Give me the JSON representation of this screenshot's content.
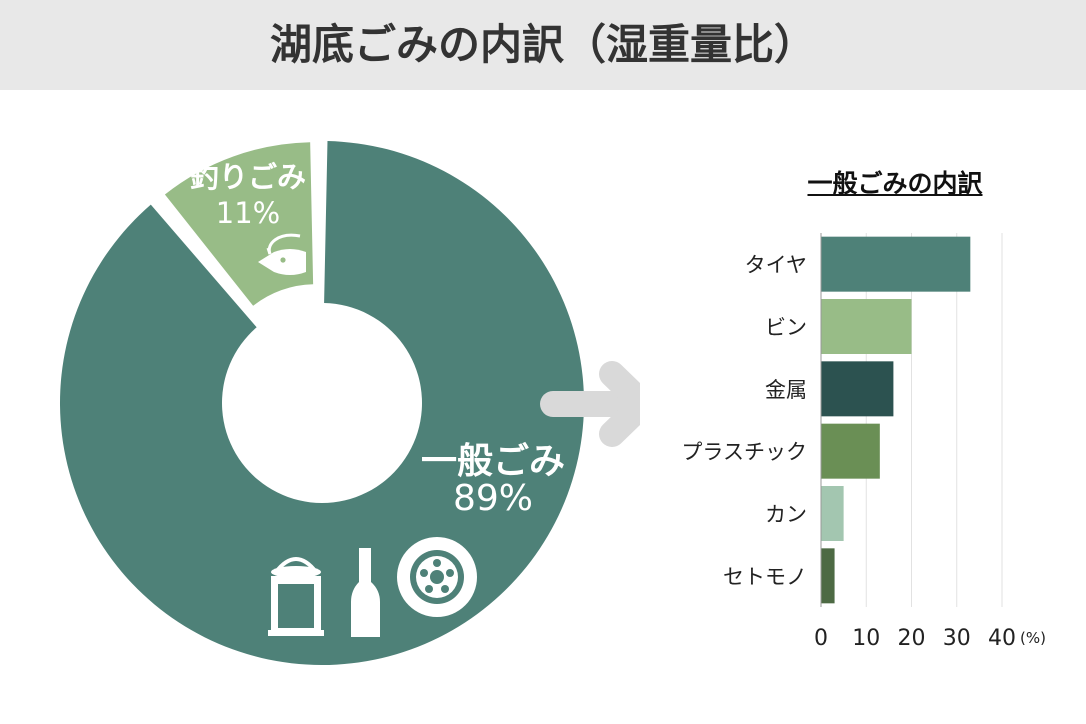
{
  "header": {
    "title": "湖底ごみの内訳（湿重量比）"
  },
  "colors": {
    "general": "#4e8178",
    "fishing": "#98bc87",
    "arrow": "#d9d9d9",
    "header_bg": "#e8e8e8"
  },
  "icons": [
    "fish-on-hook-icon",
    "paint-can-icon",
    "bottle-icon",
    "tire-icon"
  ],
  "chart_data": [
    {
      "type": "pie",
      "donut": true,
      "slices": [
        {
          "label": "一般ごみ",
          "value": 89,
          "value_label": "89%",
          "color": "#4e8178"
        },
        {
          "label": "釣りごみ",
          "value": 11,
          "value_label": "11%",
          "color": "#98bc87"
        }
      ]
    },
    {
      "type": "bar",
      "orientation": "horizontal",
      "title": "一般ごみの内訳",
      "categories": [
        "タイヤ",
        "ビン",
        "金属",
        "プラスチック",
        "カン",
        "セトモノ"
      ],
      "values": [
        33,
        20,
        16,
        13,
        5,
        3
      ],
      "colors": [
        "#4e8178",
        "#98bc87",
        "#2c5250",
        "#6a8f55",
        "#a3c6b0",
        "#4d6a44"
      ],
      "xlim": [
        0,
        40
      ],
      "xticks": [
        "0",
        "10",
        "20",
        "30",
        "40"
      ],
      "unit": "(%)",
      "grid": true
    }
  ]
}
